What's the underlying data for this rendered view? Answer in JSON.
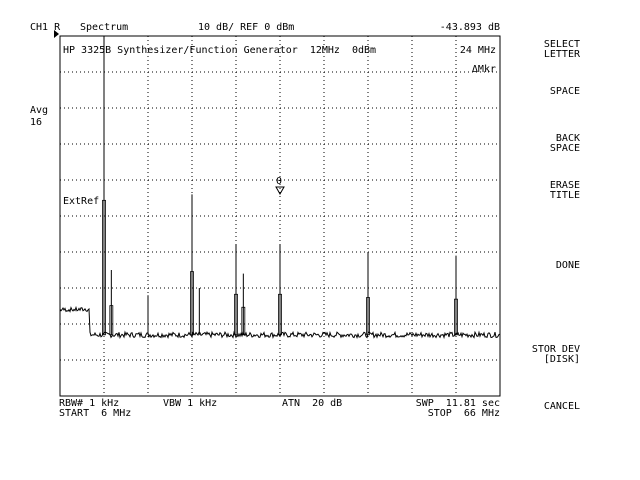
{
  "header": {
    "channel": "CH1 R",
    "mode": "Spectrum",
    "scale": "10 dB/ REF 0 dBm",
    "marker_readout": "-43.893 dB"
  },
  "trace_title": {
    "text": "HP 3325B Synthesizer/Function Generator  12MHz  0dBm",
    "marker_freq": "24 MHz",
    "marker_label": "ΔMkr"
  },
  "left_status": {
    "avg_label": "Avg",
    "avg_value": "16",
    "ext_ref": "ExtRef"
  },
  "marker_glyph": "0",
  "bottom": {
    "rbw": "RBW# 1 kHz",
    "vbw": "VBW 1 kHz",
    "atn": "ATN  20 dB",
    "swp": "SWP  11.81 sec",
    "start": "START  6 MHz",
    "stop": "STOP  66 MHz"
  },
  "softkeys": [
    "SELECT\nLETTER",
    "SPACE",
    "BACK\nSPACE",
    "ERASE\nTITLE",
    "DONE",
    "STOR DEV\n[DISK]",
    "CANCEL"
  ],
  "chart_data": {
    "type": "line",
    "xlim_mhz": [
      6,
      66
    ],
    "ref_level_dbm": 0,
    "db_per_div": 10,
    "noise_floor_dbm": -83,
    "peaks": [
      {
        "freq_mhz": 12,
        "level_dbm": 0
      },
      {
        "freq_mhz": 13,
        "level_dbm": -65
      },
      {
        "freq_mhz": 18,
        "level_dbm": -72
      },
      {
        "freq_mhz": 24,
        "level_dbm": -44
      },
      {
        "freq_mhz": 25,
        "level_dbm": -70
      },
      {
        "freq_mhz": 30,
        "level_dbm": -58
      },
      {
        "freq_mhz": 31,
        "level_dbm": -66
      },
      {
        "freq_mhz": 36,
        "level_dbm": -58
      },
      {
        "freq_mhz": 48,
        "level_dbm": -60
      },
      {
        "freq_mhz": 60,
        "level_dbm": -61
      }
    ]
  }
}
